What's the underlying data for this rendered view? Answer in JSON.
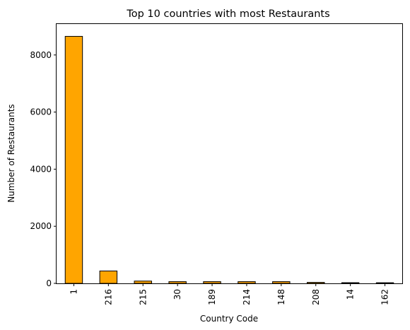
{
  "chart_data": {
    "type": "bar",
    "title": "Top 10 countries with most Restaurants",
    "xlabel": "Country Code",
    "ylabel": "Number of Restaurants",
    "categories": [
      "1",
      "216",
      "215",
      "30",
      "189",
      "214",
      "148",
      "208",
      "14",
      "162"
    ],
    "values": [
      8652,
      434,
      80,
      60,
      60,
      60,
      60,
      34,
      24,
      22
    ],
    "ylim": [
      0,
      9084
    ],
    "yticks": [
      0,
      2000,
      4000,
      6000,
      8000
    ],
    "grid": false,
    "legend": "none",
    "colors": {
      "bar_fill": "#ffa500",
      "bar_edge": "#000000"
    }
  }
}
